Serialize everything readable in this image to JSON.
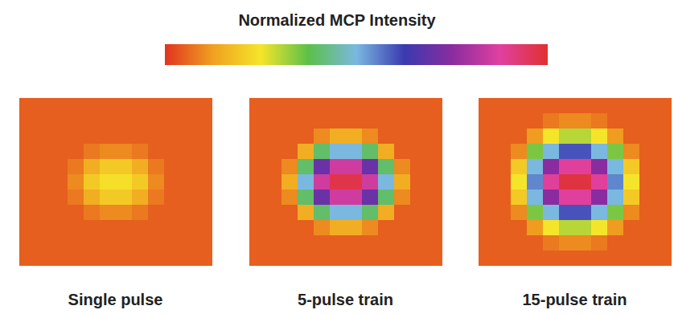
{
  "chart_data": {
    "type": "heatmap",
    "title": "Normalized MCP Intensity",
    "tick_labels": false,
    "colorbar": {
      "range": [
        0,
        1
      ]
    },
    "colors": [
      "#e0341f",
      "#f0a020",
      "#f5e52a",
      "#5cc04a",
      "#7ab8e0",
      "#3a3ab0",
      "#8a2ca0",
      "#e040a0",
      "#e03030"
    ],
    "panels": [
      {
        "label": "Single pulse",
        "cells": [
          [
            0.05,
            0.05,
            0.05,
            0.05,
            0.05,
            0.05,
            0.05,
            0.05,
            0.05,
            0.05,
            0.05,
            0.05
          ],
          [
            0.05,
            0.05,
            0.05,
            0.05,
            0.05,
            0.05,
            0.05,
            0.05,
            0.05,
            0.05,
            0.05,
            0.05
          ],
          [
            0.05,
            0.05,
            0.05,
            0.05,
            0.05,
            0.05,
            0.05,
            0.05,
            0.05,
            0.05,
            0.05,
            0.05
          ],
          [
            0.05,
            0.05,
            0.05,
            0.05,
            0.08,
            0.1,
            0.1,
            0.08,
            0.05,
            0.05,
            0.05,
            0.05
          ],
          [
            0.05,
            0.05,
            0.05,
            0.08,
            0.15,
            0.2,
            0.2,
            0.15,
            0.08,
            0.05,
            0.05,
            0.05
          ],
          [
            0.05,
            0.05,
            0.05,
            0.1,
            0.2,
            0.24,
            0.24,
            0.2,
            0.1,
            0.05,
            0.05,
            0.05
          ],
          [
            0.05,
            0.05,
            0.05,
            0.08,
            0.15,
            0.2,
            0.2,
            0.15,
            0.08,
            0.05,
            0.05,
            0.05
          ],
          [
            0.05,
            0.05,
            0.05,
            0.05,
            0.08,
            0.1,
            0.1,
            0.08,
            0.05,
            0.05,
            0.05,
            0.05
          ],
          [
            0.05,
            0.05,
            0.05,
            0.05,
            0.05,
            0.05,
            0.05,
            0.05,
            0.05,
            0.05,
            0.05,
            0.05
          ],
          [
            0.05,
            0.05,
            0.05,
            0.05,
            0.05,
            0.05,
            0.05,
            0.05,
            0.05,
            0.05,
            0.05,
            0.05
          ],
          [
            0.05,
            0.05,
            0.05,
            0.05,
            0.05,
            0.05,
            0.05,
            0.05,
            0.05,
            0.05,
            0.05,
            0.05
          ]
        ]
      },
      {
        "label": "5-pulse train",
        "cells": [
          [
            0.05,
            0.05,
            0.05,
            0.05,
            0.05,
            0.05,
            0.05,
            0.05,
            0.05,
            0.05,
            0.05,
            0.05
          ],
          [
            0.05,
            0.05,
            0.05,
            0.05,
            0.05,
            0.05,
            0.05,
            0.05,
            0.05,
            0.05,
            0.05,
            0.05
          ],
          [
            0.05,
            0.05,
            0.05,
            0.05,
            0.1,
            0.15,
            0.15,
            0.1,
            0.05,
            0.05,
            0.05,
            0.05
          ],
          [
            0.05,
            0.05,
            0.05,
            0.15,
            0.4,
            0.5,
            0.5,
            0.4,
            0.15,
            0.05,
            0.05,
            0.05
          ],
          [
            0.05,
            0.05,
            0.1,
            0.4,
            0.7,
            0.85,
            0.85,
            0.7,
            0.4,
            0.1,
            0.05,
            0.05
          ],
          [
            0.05,
            0.05,
            0.15,
            0.5,
            0.85,
            0.97,
            0.97,
            0.85,
            0.5,
            0.15,
            0.05,
            0.05
          ],
          [
            0.05,
            0.05,
            0.1,
            0.4,
            0.7,
            0.85,
            0.85,
            0.7,
            0.4,
            0.1,
            0.05,
            0.05
          ],
          [
            0.05,
            0.05,
            0.05,
            0.15,
            0.4,
            0.5,
            0.5,
            0.4,
            0.15,
            0.05,
            0.05,
            0.05
          ],
          [
            0.05,
            0.05,
            0.05,
            0.05,
            0.1,
            0.15,
            0.15,
            0.1,
            0.05,
            0.05,
            0.05,
            0.05
          ],
          [
            0.05,
            0.05,
            0.05,
            0.05,
            0.05,
            0.05,
            0.05,
            0.05,
            0.05,
            0.05,
            0.05,
            0.05
          ],
          [
            0.05,
            0.05,
            0.05,
            0.05,
            0.05,
            0.05,
            0.05,
            0.05,
            0.05,
            0.05,
            0.05,
            0.05
          ]
        ]
      },
      {
        "label": "15-pulse train",
        "cells": [
          [
            0.05,
            0.05,
            0.05,
            0.05,
            0.05,
            0.05,
            0.05,
            0.05,
            0.05,
            0.05,
            0.05,
            0.05
          ],
          [
            0.05,
            0.05,
            0.05,
            0.05,
            0.08,
            0.1,
            0.1,
            0.08,
            0.05,
            0.05,
            0.05,
            0.05
          ],
          [
            0.05,
            0.05,
            0.05,
            0.12,
            0.25,
            0.3,
            0.3,
            0.25,
            0.12,
            0.05,
            0.05,
            0.05
          ],
          [
            0.05,
            0.05,
            0.1,
            0.35,
            0.5,
            0.6,
            0.6,
            0.5,
            0.35,
            0.1,
            0.05,
            0.05
          ],
          [
            0.05,
            0.05,
            0.2,
            0.5,
            0.75,
            0.88,
            0.88,
            0.75,
            0.5,
            0.2,
            0.05,
            0.05
          ],
          [
            0.05,
            0.05,
            0.25,
            0.55,
            0.88,
            0.98,
            0.98,
            0.88,
            0.55,
            0.25,
            0.05,
            0.05
          ],
          [
            0.05,
            0.05,
            0.2,
            0.5,
            0.75,
            0.88,
            0.88,
            0.75,
            0.5,
            0.2,
            0.05,
            0.05
          ],
          [
            0.05,
            0.05,
            0.1,
            0.35,
            0.5,
            0.6,
            0.6,
            0.5,
            0.35,
            0.1,
            0.05,
            0.05
          ],
          [
            0.05,
            0.05,
            0.05,
            0.12,
            0.25,
            0.3,
            0.3,
            0.25,
            0.12,
            0.05,
            0.05,
            0.05
          ],
          [
            0.05,
            0.05,
            0.05,
            0.05,
            0.08,
            0.1,
            0.1,
            0.08,
            0.05,
            0.05,
            0.05,
            0.05
          ],
          [
            0.05,
            0.05,
            0.05,
            0.05,
            0.05,
            0.05,
            0.05,
            0.05,
            0.05,
            0.05,
            0.05,
            0.05
          ]
        ]
      }
    ]
  }
}
